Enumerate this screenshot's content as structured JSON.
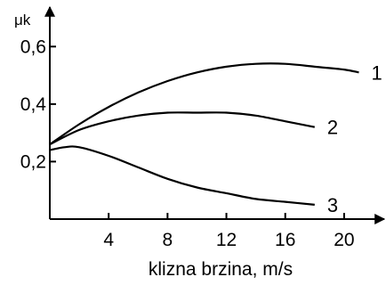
{
  "chart_data": {
    "type": "line",
    "xlabel": "klizna brzina, m/s",
    "ylabel": "μk",
    "x_ticks": [
      4,
      8,
      12,
      16,
      20
    ],
    "y_ticks": [
      0.2,
      0.4,
      0.6
    ],
    "y_tick_labels": [
      "0,2",
      "0,4",
      "0,6"
    ],
    "xlim": [
      0,
      22
    ],
    "ylim": [
      0,
      0.7
    ],
    "grid": false,
    "series": [
      {
        "name": "1",
        "x": [
          0,
          2,
          4,
          6,
          8,
          10,
          12,
          14,
          16,
          18,
          20,
          21
        ],
        "y": [
          0.26,
          0.33,
          0.39,
          0.44,
          0.48,
          0.51,
          0.53,
          0.54,
          0.54,
          0.53,
          0.52,
          0.51
        ]
      },
      {
        "name": "2",
        "x": [
          0,
          2,
          4,
          6,
          8,
          10,
          12,
          14,
          16,
          18
        ],
        "y": [
          0.26,
          0.31,
          0.34,
          0.36,
          0.37,
          0.37,
          0.37,
          0.36,
          0.34,
          0.32
        ]
      },
      {
        "name": "3",
        "x": [
          0,
          1,
          2,
          4,
          6,
          8,
          10,
          12,
          14,
          16,
          18
        ],
        "y": [
          0.24,
          0.25,
          0.25,
          0.22,
          0.18,
          0.14,
          0.11,
          0.09,
          0.07,
          0.06,
          0.05
        ]
      }
    ]
  }
}
